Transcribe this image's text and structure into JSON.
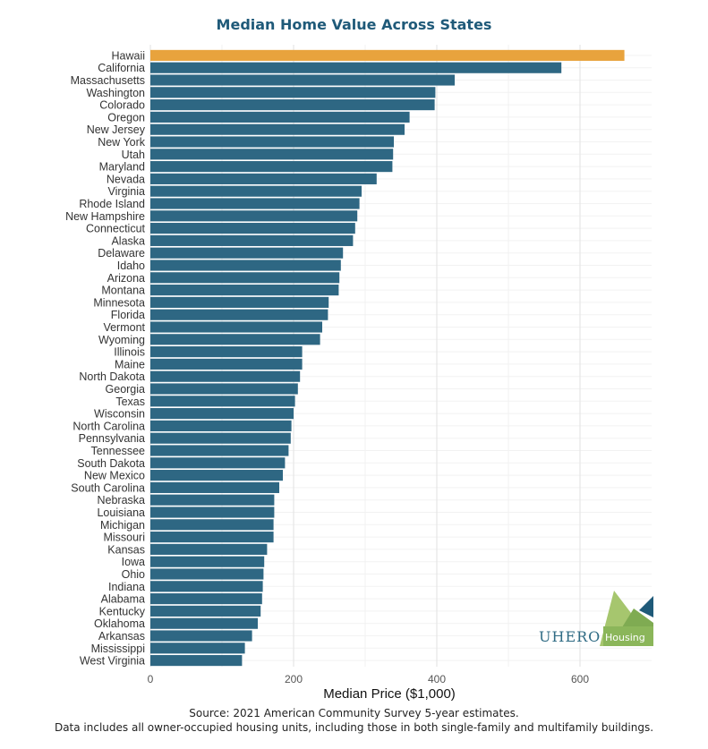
{
  "chart_data": {
    "type": "bar",
    "orientation": "horizontal",
    "title": "Median Home Value Across States",
    "xlabel": "Median Price ($1,000)",
    "ylabel": "",
    "xlim": [
      0,
      700
    ],
    "xticks": [
      0,
      200,
      400,
      600
    ],
    "grid": true,
    "highlight_color": "#e8a33d",
    "bar_color": "#2e6783",
    "highlight_category": "Hawaii",
    "categories": [
      "Hawaii",
      "California",
      "Massachusetts",
      "Washington",
      "Colorado",
      "Oregon",
      "New Jersey",
      "New York",
      "Utah",
      "Maryland",
      "Nevada",
      "Virginia",
      "Rhode Island",
      "New Hampshire",
      "Connecticut",
      "Alaska",
      "Delaware",
      "Idaho",
      "Arizona",
      "Montana",
      "Minnesota",
      "Florida",
      "Vermont",
      "Wyoming",
      "Illinois",
      "Maine",
      "North Dakota",
      "Georgia",
      "Texas",
      "Wisconsin",
      "North Carolina",
      "Pennsylvania",
      "Tennessee",
      "South Dakota",
      "New Mexico",
      "South Carolina",
      "Nebraska",
      "Louisiana",
      "Michigan",
      "Missouri",
      "Kansas",
      "Iowa",
      "Ohio",
      "Indiana",
      "Alabama",
      "Kentucky",
      "Oklahoma",
      "Arkansas",
      "Mississippi",
      "West Virginia"
    ],
    "values": [
      662,
      574,
      425,
      398,
      397,
      362,
      355,
      340,
      339,
      338,
      316,
      295,
      292,
      289,
      286,
      283,
      269,
      266,
      264,
      263,
      249,
      248,
      240,
      237,
      212,
      212,
      209,
      206,
      202,
      200,
      197,
      196,
      193,
      188,
      185,
      180,
      173,
      173,
      172,
      172,
      163,
      159,
      158,
      157,
      156,
      154,
      150,
      142,
      132,
      128
    ]
  },
  "footer": {
    "source": "Source: 2021 American Community Survey 5-year estimates.",
    "note": "Data includes all owner-occupied housing units, including those in both single-family and multifamily buildings."
  },
  "logo": {
    "name": "UHERO",
    "sub": "Housing"
  }
}
